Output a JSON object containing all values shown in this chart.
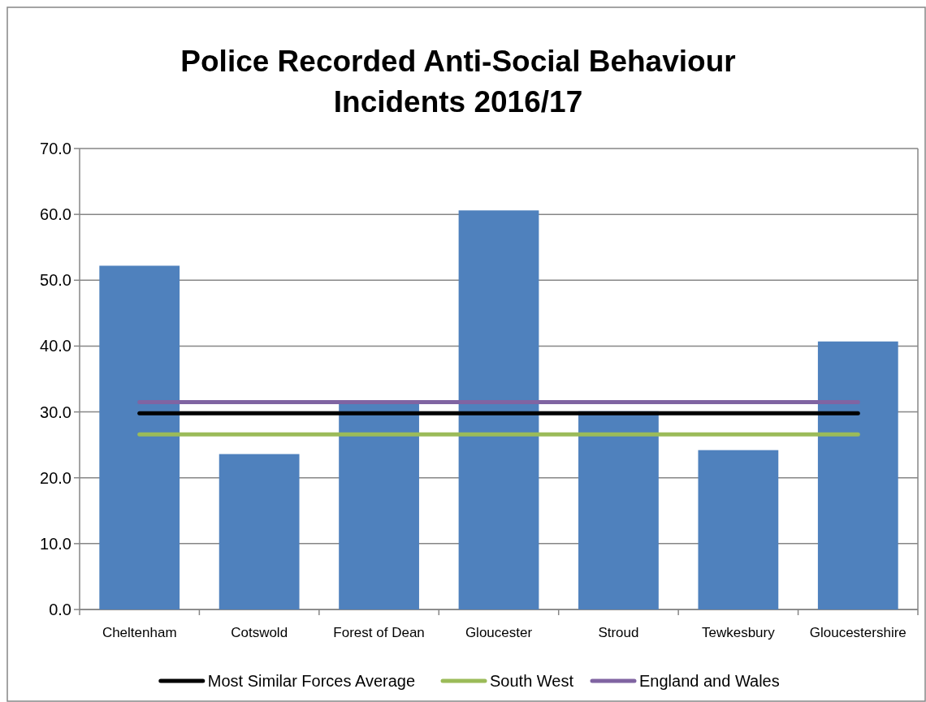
{
  "chart_data": {
    "type": "bar",
    "title": "Police Recorded Anti-Social Behaviour Incidents 2016/17",
    "categories": [
      "Cheltenham",
      "Cotswold",
      "Forest of Dean",
      "Gloucester",
      "Stroud",
      "Tewkesbury",
      "Gloucestershire"
    ],
    "series": [
      {
        "color": "#4f81bd",
        "values": [
          52.2,
          23.6,
          31.3,
          60.6,
          30.1,
          24.2,
          40.7
        ]
      },
      {
        "type": "line",
        "name": "Most Similar Forces Average",
        "color": "#000000",
        "values": [
          29.8,
          29.8,
          29.8,
          29.8,
          29.8,
          29.8,
          29.8
        ]
      },
      {
        "type": "line",
        "name": "South West",
        "color": "#9bbb59",
        "values": [
          26.6,
          26.6,
          26.6,
          26.6,
          26.6,
          26.6,
          26.6
        ]
      },
      {
        "type": "line",
        "name": "England and Wales",
        "color": "#8064a2",
        "values": [
          31.5,
          31.5,
          31.5,
          31.5,
          31.5,
          31.5,
          31.5
        ]
      }
    ],
    "ylim": [
      0,
      70
    ],
    "yticks": [
      {
        "value": 0,
        "label": "0.0"
      },
      {
        "value": 10,
        "label": "10.0"
      },
      {
        "value": 20,
        "label": "20.0"
      },
      {
        "value": 30,
        "label": "30.0"
      },
      {
        "value": 40,
        "label": "40.0"
      },
      {
        "value": 50,
        "label": "50.0"
      },
      {
        "value": 60,
        "label": "60.0"
      },
      {
        "value": 70,
        "label": "70.0"
      }
    ],
    "grid": "y",
    "legend": "bottom",
    "marker": "none",
    "line_style": "solid"
  }
}
